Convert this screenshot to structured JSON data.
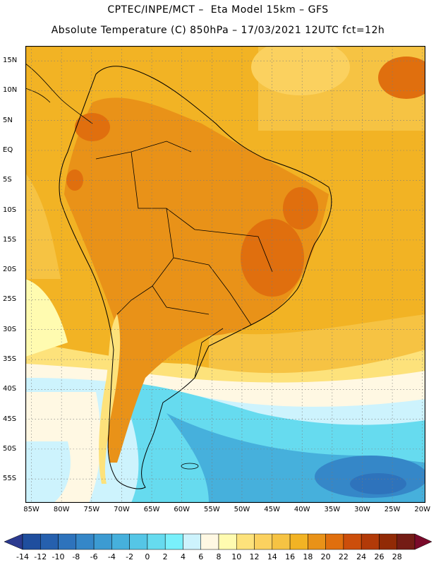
{
  "title": {
    "line1": "CPTEC/INPE/MCT –  Eta Model 15km – GFS",
    "line2": "Absolute Temperature (C) 850hPa – 17/03/2021 12UTC fct=12h"
  },
  "map": {
    "lon_range": [
      -86,
      -19.5
    ],
    "lat_range": [
      -59,
      17.5
    ],
    "lon_ticks": [
      "85W",
      "80W",
      "75W",
      "70W",
      "65W",
      "60W",
      "55W",
      "50W",
      "45W",
      "40W",
      "35W",
      "30W",
      "25W",
      "20W"
    ],
    "lat_ticks": [
      "15N",
      "10N",
      "5N",
      "EQ",
      "5S",
      "10S",
      "15S",
      "20S",
      "25S",
      "30S",
      "35S",
      "40S",
      "45S",
      "50S",
      "55S"
    ]
  },
  "colorbar": {
    "labels": [
      "-14",
      "-12",
      "-10",
      "-8",
      "-6",
      "-4",
      "-2",
      "0",
      "2",
      "4",
      "6",
      "8",
      "10",
      "12",
      "14",
      "16",
      "18",
      "20",
      "22",
      "24",
      "26",
      "28"
    ],
    "colors": [
      "#1f4e9e",
      "#2660ae",
      "#2e73bc",
      "#3587c8",
      "#3c9bd2",
      "#46b0dc",
      "#55c6e6",
      "#66dbef",
      "#79f0fb",
      "#cdf3fd",
      "#fff8e3",
      "#fffbb0",
      "#fde27b",
      "#fbd15f",
      "#f6c343",
      "#f2b324",
      "#e99218",
      "#e06f0e",
      "#cc4e0b",
      "#b23a08",
      "#912a06",
      "#741c15"
    ],
    "under_color": "#2b3a8f",
    "over_color": "#7a0a2a"
  }
}
